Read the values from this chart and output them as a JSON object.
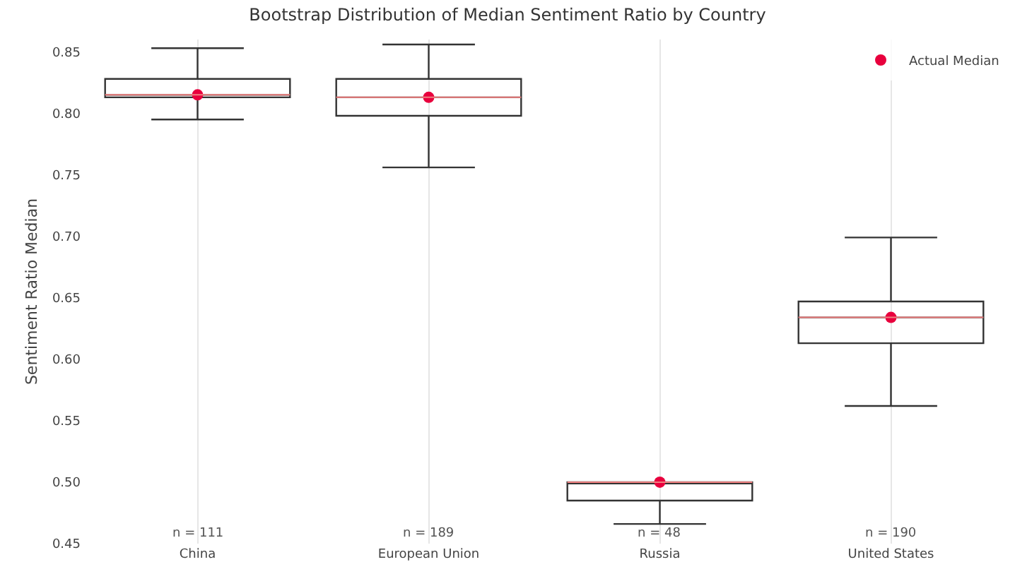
{
  "chart_data": {
    "type": "box",
    "title": "Bootstrap Distribution of Median Sentiment Ratio by Country",
    "ylabel": "Sentiment Ratio Median",
    "categories": [
      "China",
      "European Union",
      "Russia",
      "United States"
    ],
    "boxes": [
      {
        "low": 0.795,
        "q1": 0.813,
        "median": 0.815,
        "q3": 0.828,
        "high": 0.853
      },
      {
        "low": 0.756,
        "q1": 0.798,
        "median": 0.813,
        "q3": 0.828,
        "high": 0.856
      },
      {
        "low": 0.466,
        "q1": 0.485,
        "median": 0.5,
        "q3": 0.5,
        "high": 0.5
      },
      {
        "low": 0.562,
        "q1": 0.613,
        "median": 0.634,
        "q3": 0.647,
        "high": 0.699
      }
    ],
    "series": [
      {
        "name": "Actual Median",
        "type": "scatter",
        "color": "#e8003d",
        "x": [
          "China",
          "European Union",
          "Russia",
          "United States"
        ],
        "values": [
          0.815,
          0.813,
          0.5,
          0.634
        ]
      }
    ],
    "annotations": [
      "n = 111",
      "n = 189",
      "n = 48",
      "n = 190"
    ],
    "ylim": [
      0.45,
      0.86
    ],
    "yticks": [
      {
        "value": 0.45,
        "label": "0.45"
      },
      {
        "value": 0.5,
        "label": "0.50"
      },
      {
        "value": 0.55,
        "label": "0.55"
      },
      {
        "value": 0.6,
        "label": "0.60"
      },
      {
        "value": 0.65,
        "label": "0.65"
      },
      {
        "value": 0.7,
        "label": "0.70"
      },
      {
        "value": 0.75,
        "label": "0.75"
      },
      {
        "value": 0.8,
        "label": "0.80"
      },
      {
        "value": 0.85,
        "label": "0.85"
      }
    ],
    "grid": "x",
    "legend": "top right",
    "marker": "circle"
  }
}
